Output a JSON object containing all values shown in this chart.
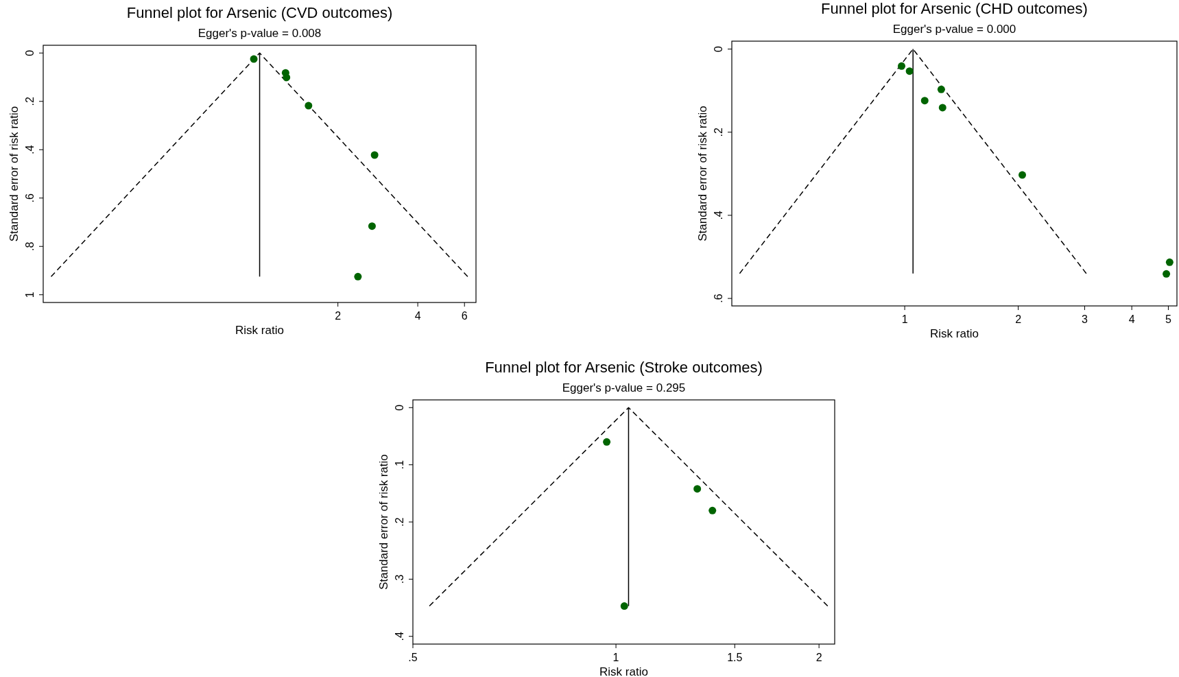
{
  "chart_data": [
    {
      "type": "scatter",
      "title": "Funnel plot for Arsenic (CVD outcomes)",
      "subtitle": "Egger's p-value = 0.008",
      "xlabel": "Risk ratio",
      "ylabel": "Standard error of risk ratio",
      "log": "x",
      "xlim": [
        0.155,
        6.63
      ],
      "xticks": [
        2,
        4,
        6
      ],
      "ylim": [
        1.032,
        -0.032
      ],
      "yticks": [
        {
          "value": 0,
          "label": "0"
        },
        {
          "value": 0.2,
          "label": ".2"
        },
        {
          "value": 0.4,
          "label": ".4"
        },
        {
          "value": 0.6,
          "label": ".6"
        },
        {
          "value": 0.8,
          "label": ".8"
        },
        {
          "value": 1,
          "label": "1"
        }
      ],
      "series": [
        {
          "type": "line",
          "line_style": "dashed",
          "color": "#000000",
          "x": [
            0.166,
            1.014,
            6.17
          ],
          "values": [
            0.925,
            0,
            0.925
          ]
        },
        {
          "type": "line",
          "line_style": "solid",
          "color": "#000000",
          "x": [
            1.014,
            1.014
          ],
          "values": [
            0,
            0.925
          ]
        },
        {
          "marker": "circle",
          "color": "#006400",
          "x": [
            0.964,
            1.27,
            1.28,
            1.55,
            2.75,
            2.69,
            2.38
          ],
          "values": [
            0.025,
            0.082,
            0.101,
            0.218,
            0.422,
            0.716,
            0.925
          ]
        }
      ]
    },
    {
      "type": "scatter",
      "title": "Funnel plot for Arsenic (CHD outcomes)",
      "subtitle": "Egger's p-value = 0.000",
      "xlabel": "Risk ratio",
      "ylabel": "Standard error of risk ratio",
      "log": "x",
      "xlim": [
        0.348,
        5.27
      ],
      "xticks": [
        1,
        2,
        3,
        4,
        5
      ],
      "ylim": [
        0.618,
        -0.019
      ],
      "yticks": [
        {
          "value": 0,
          "label": "0"
        },
        {
          "value": 0.2,
          "label": ".2"
        },
        {
          "value": 0.4,
          "label": ".4"
        },
        {
          "value": 0.6,
          "label": ".6"
        }
      ],
      "series": [
        {
          "type": "line",
          "line_style": "dashed",
          "color": "#000000",
          "x": [
            0.365,
            1.052,
            3.03
          ],
          "values": [
            0.54,
            0,
            0.54
          ]
        },
        {
          "type": "line",
          "line_style": "solid",
          "color": "#000000",
          "x": [
            1.052,
            1.052
          ],
          "values": [
            0,
            0.54
          ]
        },
        {
          "marker": "circle",
          "color": "#006400",
          "x": [
            0.981,
            1.03,
            1.25,
            1.13,
            1.26,
            2.05,
            5.04,
            4.94
          ],
          "values": [
            0.041,
            0.053,
            0.097,
            0.124,
            0.141,
            0.303,
            0.513,
            0.541
          ]
        }
      ]
    },
    {
      "type": "scatter",
      "title": "Funnel plot for Arsenic (Stroke outcomes)",
      "subtitle": "Egger's p-value = 0.295",
      "xlabel": "Risk ratio",
      "ylabel": "Standard error of risk ratio",
      "log": "x",
      "xlim": [
        0.5,
        2.11
      ],
      "xticks": [
        {
          "value": 0.5,
          "label": ".5"
        },
        1,
        1.5,
        2
      ],
      "ylim": [
        0.4135,
        -0.0135
      ],
      "yticks": [
        {
          "value": 0,
          "label": "0"
        },
        {
          "value": 0.1,
          "label": ".1"
        },
        {
          "value": 0.2,
          "label": ".2"
        },
        {
          "value": 0.3,
          "label": ".3"
        },
        {
          "value": 0.4,
          "label": ".4"
        }
      ],
      "series": [
        {
          "type": "line",
          "line_style": "dashed",
          "color": "#000000",
          "x": [
            0.529,
            1.044,
            2.06
          ],
          "values": [
            0.347,
            0,
            0.347
          ]
        },
        {
          "type": "line",
          "line_style": "solid",
          "color": "#000000",
          "x": [
            1.044,
            1.044
          ],
          "values": [
            0,
            0.347
          ]
        },
        {
          "marker": "circle",
          "color": "#006400",
          "x": [
            0.969,
            1.32,
            1.39,
            1.029
          ],
          "values": [
            0.06,
            0.142,
            0.18,
            0.347
          ]
        }
      ]
    }
  ]
}
